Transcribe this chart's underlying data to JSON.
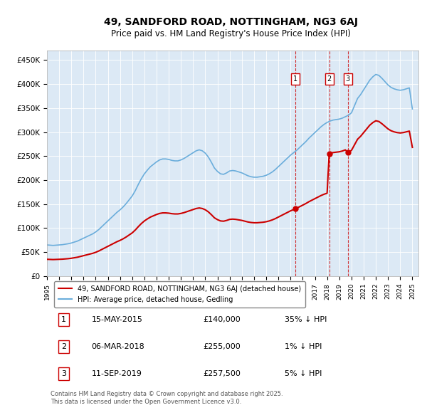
{
  "title": "49, SANDFORD ROAD, NOTTINGHAM, NG3 6AJ",
  "subtitle": "Price paid vs. HM Land Registry's House Price Index (HPI)",
  "background_color": "#dce9f5",
  "plot_bg_color": "#dce9f5",
  "ylabel_ticks": [
    "£0",
    "£50K",
    "£100K",
    "£150K",
    "£200K",
    "£250K",
    "£300K",
    "£350K",
    "£400K",
    "£450K"
  ],
  "ytick_values": [
    0,
    50000,
    100000,
    150000,
    200000,
    250000,
    300000,
    350000,
    400000,
    450000
  ],
  "x_start_year": 1995,
  "x_end_year": 2025,
  "hpi_color": "#6aaddb",
  "price_color": "#cc0000",
  "marker_color": "#cc0000",
  "vline_color": "#cc0000",
  "annotation_box_color": "#cc0000",
  "legend_label_price": "49, SANDFORD ROAD, NOTTINGHAM, NG3 6AJ (detached house)",
  "legend_label_hpi": "HPI: Average price, detached house, Gedling",
  "transactions": [
    {
      "num": 1,
      "date_num": 2015.37,
      "price": 140000,
      "label": "15-MAY-2015",
      "amount": "£140,000",
      "change": "35% ↓ HPI"
    },
    {
      "num": 2,
      "date_num": 2018.17,
      "price": 255000,
      "label": "06-MAR-2018",
      "amount": "£255,000",
      "change": "1% ↓ HPI"
    },
    {
      "num": 3,
      "date_num": 2019.69,
      "price": 257500,
      "label": "11-SEP-2019",
      "amount": "£257,500",
      "change": "5% ↓ HPI"
    }
  ],
  "footer_text": "Contains HM Land Registry data © Crown copyright and database right 2025.\nThis data is licensed under the Open Government Licence v3.0.",
  "hpi_data_x": [
    1995.0,
    1995.25,
    1995.5,
    1995.75,
    1996.0,
    1996.25,
    1996.5,
    1996.75,
    1997.0,
    1997.25,
    1997.5,
    1997.75,
    1998.0,
    1998.25,
    1998.5,
    1998.75,
    1999.0,
    1999.25,
    1999.5,
    1999.75,
    2000.0,
    2000.25,
    2000.5,
    2000.75,
    2001.0,
    2001.25,
    2001.5,
    2001.75,
    2002.0,
    2002.25,
    2002.5,
    2002.75,
    2003.0,
    2003.25,
    2003.5,
    2003.75,
    2004.0,
    2004.25,
    2004.5,
    2004.75,
    2005.0,
    2005.25,
    2005.5,
    2005.75,
    2006.0,
    2006.25,
    2006.5,
    2006.75,
    2007.0,
    2007.25,
    2007.5,
    2007.75,
    2008.0,
    2008.25,
    2008.5,
    2008.75,
    2009.0,
    2009.25,
    2009.5,
    2009.75,
    2010.0,
    2010.25,
    2010.5,
    2010.75,
    2011.0,
    2011.25,
    2011.5,
    2011.75,
    2012.0,
    2012.25,
    2012.5,
    2012.75,
    2013.0,
    2013.25,
    2013.5,
    2013.75,
    2014.0,
    2014.25,
    2014.5,
    2014.75,
    2015.0,
    2015.25,
    2015.5,
    2015.75,
    2016.0,
    2016.25,
    2016.5,
    2016.75,
    2017.0,
    2017.25,
    2017.5,
    2017.75,
    2018.0,
    2018.25,
    2018.5,
    2018.75,
    2019.0,
    2019.25,
    2019.5,
    2019.75,
    2020.0,
    2020.25,
    2020.5,
    2020.75,
    2021.0,
    2021.25,
    2021.5,
    2021.75,
    2022.0,
    2022.25,
    2022.5,
    2022.75,
    2023.0,
    2023.25,
    2023.5,
    2023.75,
    2024.0,
    2024.25,
    2024.5,
    2024.75,
    2025.0
  ],
  "hpi_data_y": [
    65000,
    64500,
    64000,
    64500,
    65000,
    65500,
    66500,
    67500,
    69000,
    71000,
    73000,
    76000,
    79000,
    82000,
    85000,
    88000,
    92000,
    97000,
    103000,
    109000,
    115000,
    121000,
    127000,
    133000,
    138000,
    144000,
    151000,
    159000,
    167000,
    178000,
    191000,
    203000,
    213000,
    221000,
    228000,
    233000,
    238000,
    242000,
    244000,
    244000,
    243000,
    241000,
    240000,
    240000,
    242000,
    245000,
    249000,
    253000,
    257000,
    261000,
    263000,
    261000,
    256000,
    248000,
    237000,
    225000,
    218000,
    213000,
    212000,
    215000,
    219000,
    220000,
    219000,
    217000,
    215000,
    212000,
    209000,
    207000,
    206000,
    206000,
    207000,
    208000,
    210000,
    213000,
    217000,
    222000,
    228000,
    234000,
    240000,
    246000,
    252000,
    257000,
    262000,
    268000,
    274000,
    280000,
    287000,
    293000,
    299000,
    305000,
    311000,
    316000,
    320000,
    323000,
    325000,
    326000,
    327000,
    329000,
    332000,
    335000,
    340000,
    355000,
    370000,
    378000,
    388000,
    398000,
    408000,
    415000,
    420000,
    418000,
    412000,
    405000,
    398000,
    393000,
    390000,
    388000,
    387000,
    388000,
    390000,
    392000,
    348000
  ]
}
